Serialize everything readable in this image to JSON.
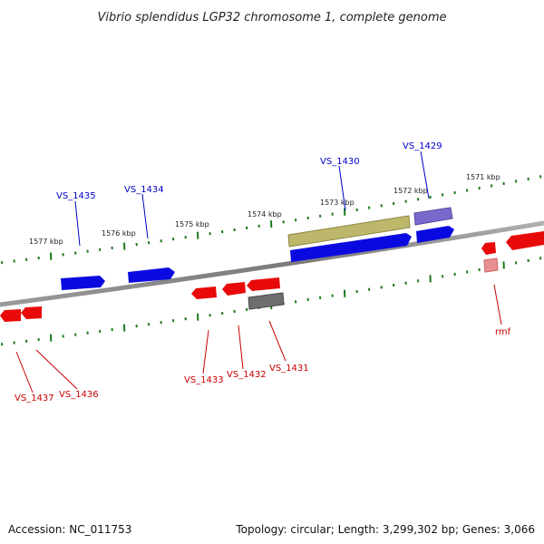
{
  "title": "Vibrio splendidus LGP32 chromosome 1, complete genome",
  "footer": {
    "accession": "Accession: NC_011753",
    "summary": "Topology: circular; Length: 3,299,302 bp; Genes: 3,066"
  },
  "scale_labels": [
    "1577 kbp",
    "1576 kbp",
    "1575 kbp",
    "1574 kbp",
    "1573 kbp",
    "1572 kbp",
    "1571 kbp"
  ],
  "colors": {
    "backbone": "#8a8a8a",
    "tick": "#1a7a1a",
    "forward_gene": "#0a0ae0",
    "reverse_gene": "#e80a0a",
    "forward_label": "#0000c8",
    "reverse_label": "#c80000",
    "olive_feature": "#bdb76b",
    "purple_feature": "#7b68cc",
    "gray_feature": "#6e6e6e",
    "pink_feature": "#e89090"
  },
  "genes_forward": [
    "VS_1435",
    "VS_1434",
    "VS_1430",
    "VS_1429"
  ],
  "genes_reverse": [
    "VS_1437",
    "VS_1436",
    "VS_1433",
    "VS_1432",
    "VS_1431",
    "rmf"
  ]
}
